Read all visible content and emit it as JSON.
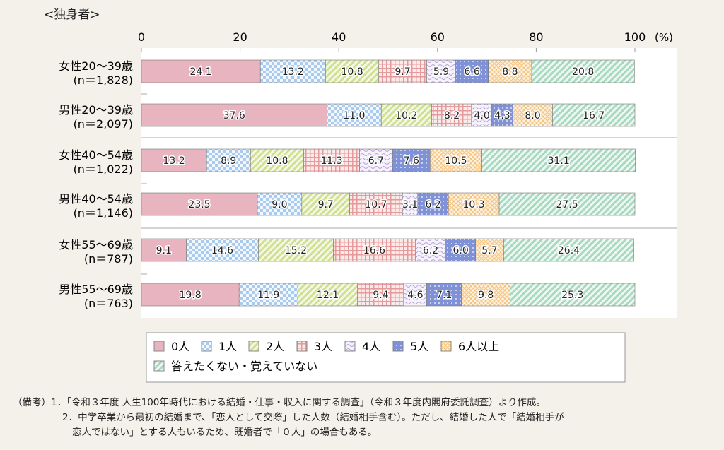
{
  "chart_data": {
    "type": "bar",
    "orientation": "horizontal-stacked-100",
    "title": "<独身者>",
    "xlabel": "(%)",
    "xlim": [
      0,
      100
    ],
    "xticks": [
      "0",
      "20",
      "40",
      "60",
      "80",
      "100"
    ],
    "categories": [
      {
        "label": "女性20～39歳",
        "n": "(n＝1,828)"
      },
      {
        "label": "男性20～39歳",
        "n": "(n＝2,097)"
      },
      {
        "label": "女性40～54歳",
        "n": "(n＝1,022)"
      },
      {
        "label": "男性40～54歳",
        "n": "(n＝1,146)"
      },
      {
        "label": "女性55～69歳",
        "n": "(n＝787)"
      },
      {
        "label": "男性55～69歳",
        "n": "(n＝763)"
      }
    ],
    "series": [
      {
        "name": "0人",
        "color": "#e8b4c0",
        "values": [
          24.1,
          37.6,
          13.2,
          23.5,
          9.1,
          19.8
        ]
      },
      {
        "name": "1人",
        "color": "#a9cbee",
        "values": [
          13.2,
          11.0,
          8.9,
          9.0,
          14.6,
          11.9
        ]
      },
      {
        "name": "2人",
        "color": "#d3e39a",
        "values": [
          10.8,
          10.2,
          10.8,
          9.7,
          15.2,
          12.1
        ]
      },
      {
        "name": "3人",
        "color": "#eaa5a5",
        "values": [
          9.7,
          8.2,
          11.3,
          10.7,
          16.6,
          9.4
        ]
      },
      {
        "name": "4人",
        "color": "#c9b8e2",
        "values": [
          5.9,
          4.0,
          6.7,
          3.1,
          6.2,
          4.6
        ]
      },
      {
        "name": "5人",
        "color": "#7f92d8",
        "values": [
          6.6,
          4.3,
          7.6,
          6.2,
          6.0,
          7.1
        ]
      },
      {
        "name": "6人以上",
        "color": "#f6c98e",
        "values": [
          8.8,
          8.0,
          10.5,
          10.3,
          5.7,
          9.8
        ]
      },
      {
        "name": "答えたくない・覚えていない",
        "color": "#a9dcc3",
        "values": [
          20.8,
          16.7,
          31.1,
          27.5,
          26.4,
          25.3
        ]
      }
    ],
    "legend": "bottom"
  },
  "notes": {
    "label": "（備考）",
    "items": [
      "1．「令和３年度 人生100年時代における結婚・仕事・収入に関する調査」（令和３年度内閣府委託調査）より作成。",
      "2．中学卒業から最初の結婚まで、「恋人として交際」した人数（結婚相手含む）。ただし、結婚した人で「結婚相手が",
      "恋人ではない」とする人もいるため、既婚者で「０人」の場合もある。"
    ]
  }
}
